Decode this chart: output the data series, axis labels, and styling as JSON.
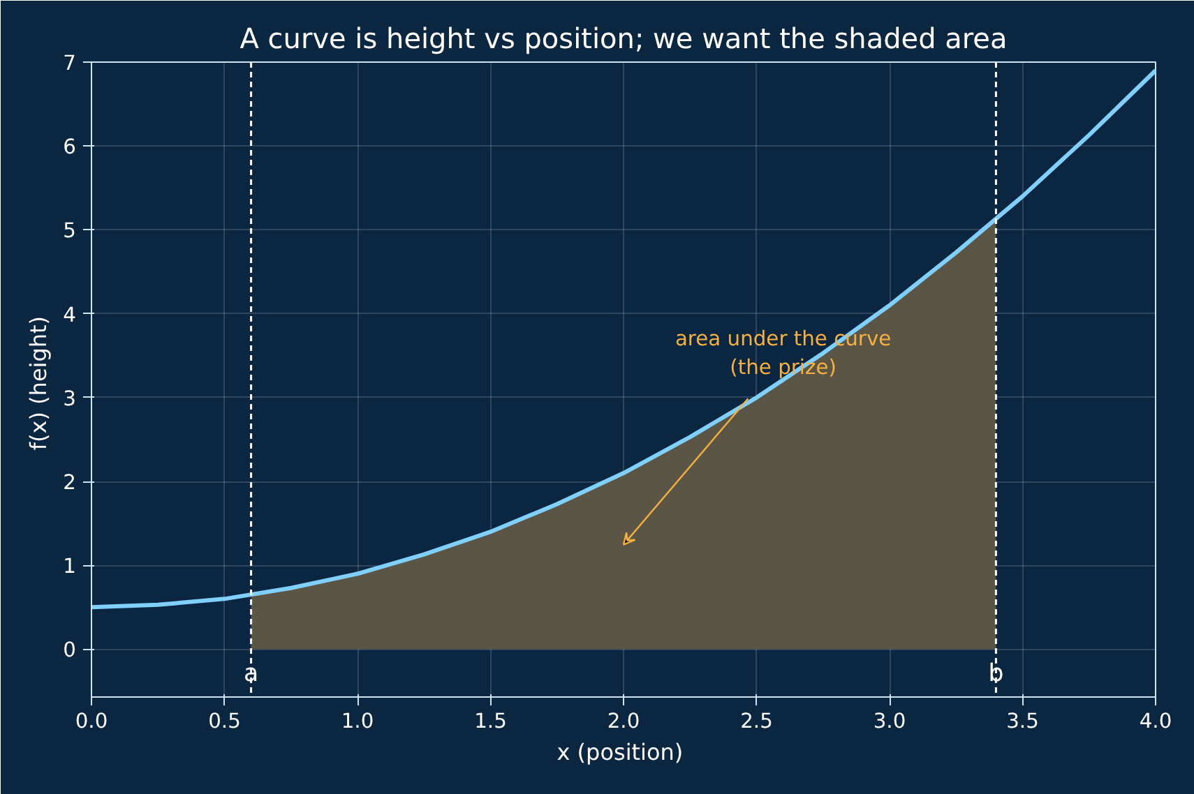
{
  "chart_data": {
    "type": "line",
    "title": "A curve is height vs position; we want the shaded area",
    "xlabel": "x  (position)",
    "ylabel": "f(x)  (height)",
    "series": [
      {
        "type": "area",
        "color": "#5a5545",
        "x": [
          0.6,
          0.75,
          1.0,
          1.25,
          1.5,
          1.75,
          2.0,
          2.25,
          2.5,
          2.75,
          3.0,
          3.25,
          3.4
        ],
        "values": [
          0.64,
          0.73,
          0.9,
          1.13,
          1.4,
          1.73,
          2.1,
          2.53,
          3.0,
          3.53,
          4.1,
          4.73,
          5.12
        ]
      },
      {
        "color": "#7fd0ff",
        "x": [
          0,
          0.25,
          0.5,
          0.75,
          1.0,
          1.25,
          1.5,
          1.75,
          2.0,
          2.25,
          2.5,
          2.75,
          3.0,
          3.25,
          3.5,
          3.75,
          4.0
        ],
        "values": [
          0.5,
          0.53,
          0.6,
          0.73,
          0.9,
          1.13,
          1.4,
          1.73,
          2.1,
          2.53,
          3.0,
          3.53,
          4.1,
          4.73,
          5.4,
          6.13,
          6.9
        ]
      }
    ],
    "ref_lines": [
      {
        "axis": "x",
        "value": 0.6,
        "label": "a",
        "color": "#ffffff",
        "line_style": "dashed"
      },
      {
        "axis": "x",
        "value": 3.4,
        "label": "b",
        "color": "#ffffff",
        "line_style": "dashed"
      }
    ],
    "annotations": [
      "area under the curve\n(the prize)"
    ],
    "xlim": [
      0,
      4
    ],
    "ylim": [
      -0.57,
      7
    ],
    "xticks": [
      {
        "value": 0,
        "label": "0.0"
      },
      {
        "value": 0.5,
        "label": "0.5"
      },
      {
        "value": 1,
        "label": "1.0"
      },
      {
        "value": 1.5,
        "label": "1.5"
      },
      {
        "value": 2,
        "label": "2.0"
      },
      {
        "value": 2.5,
        "label": "2.5"
      },
      {
        "value": 3,
        "label": "3.0"
      },
      {
        "value": 3.5,
        "label": "3.5"
      },
      {
        "value": 4,
        "label": "4.0"
      }
    ],
    "yticks": [
      0,
      1,
      2,
      3,
      4,
      5,
      6,
      7
    ],
    "grid": true,
    "line_style": "solid"
  }
}
